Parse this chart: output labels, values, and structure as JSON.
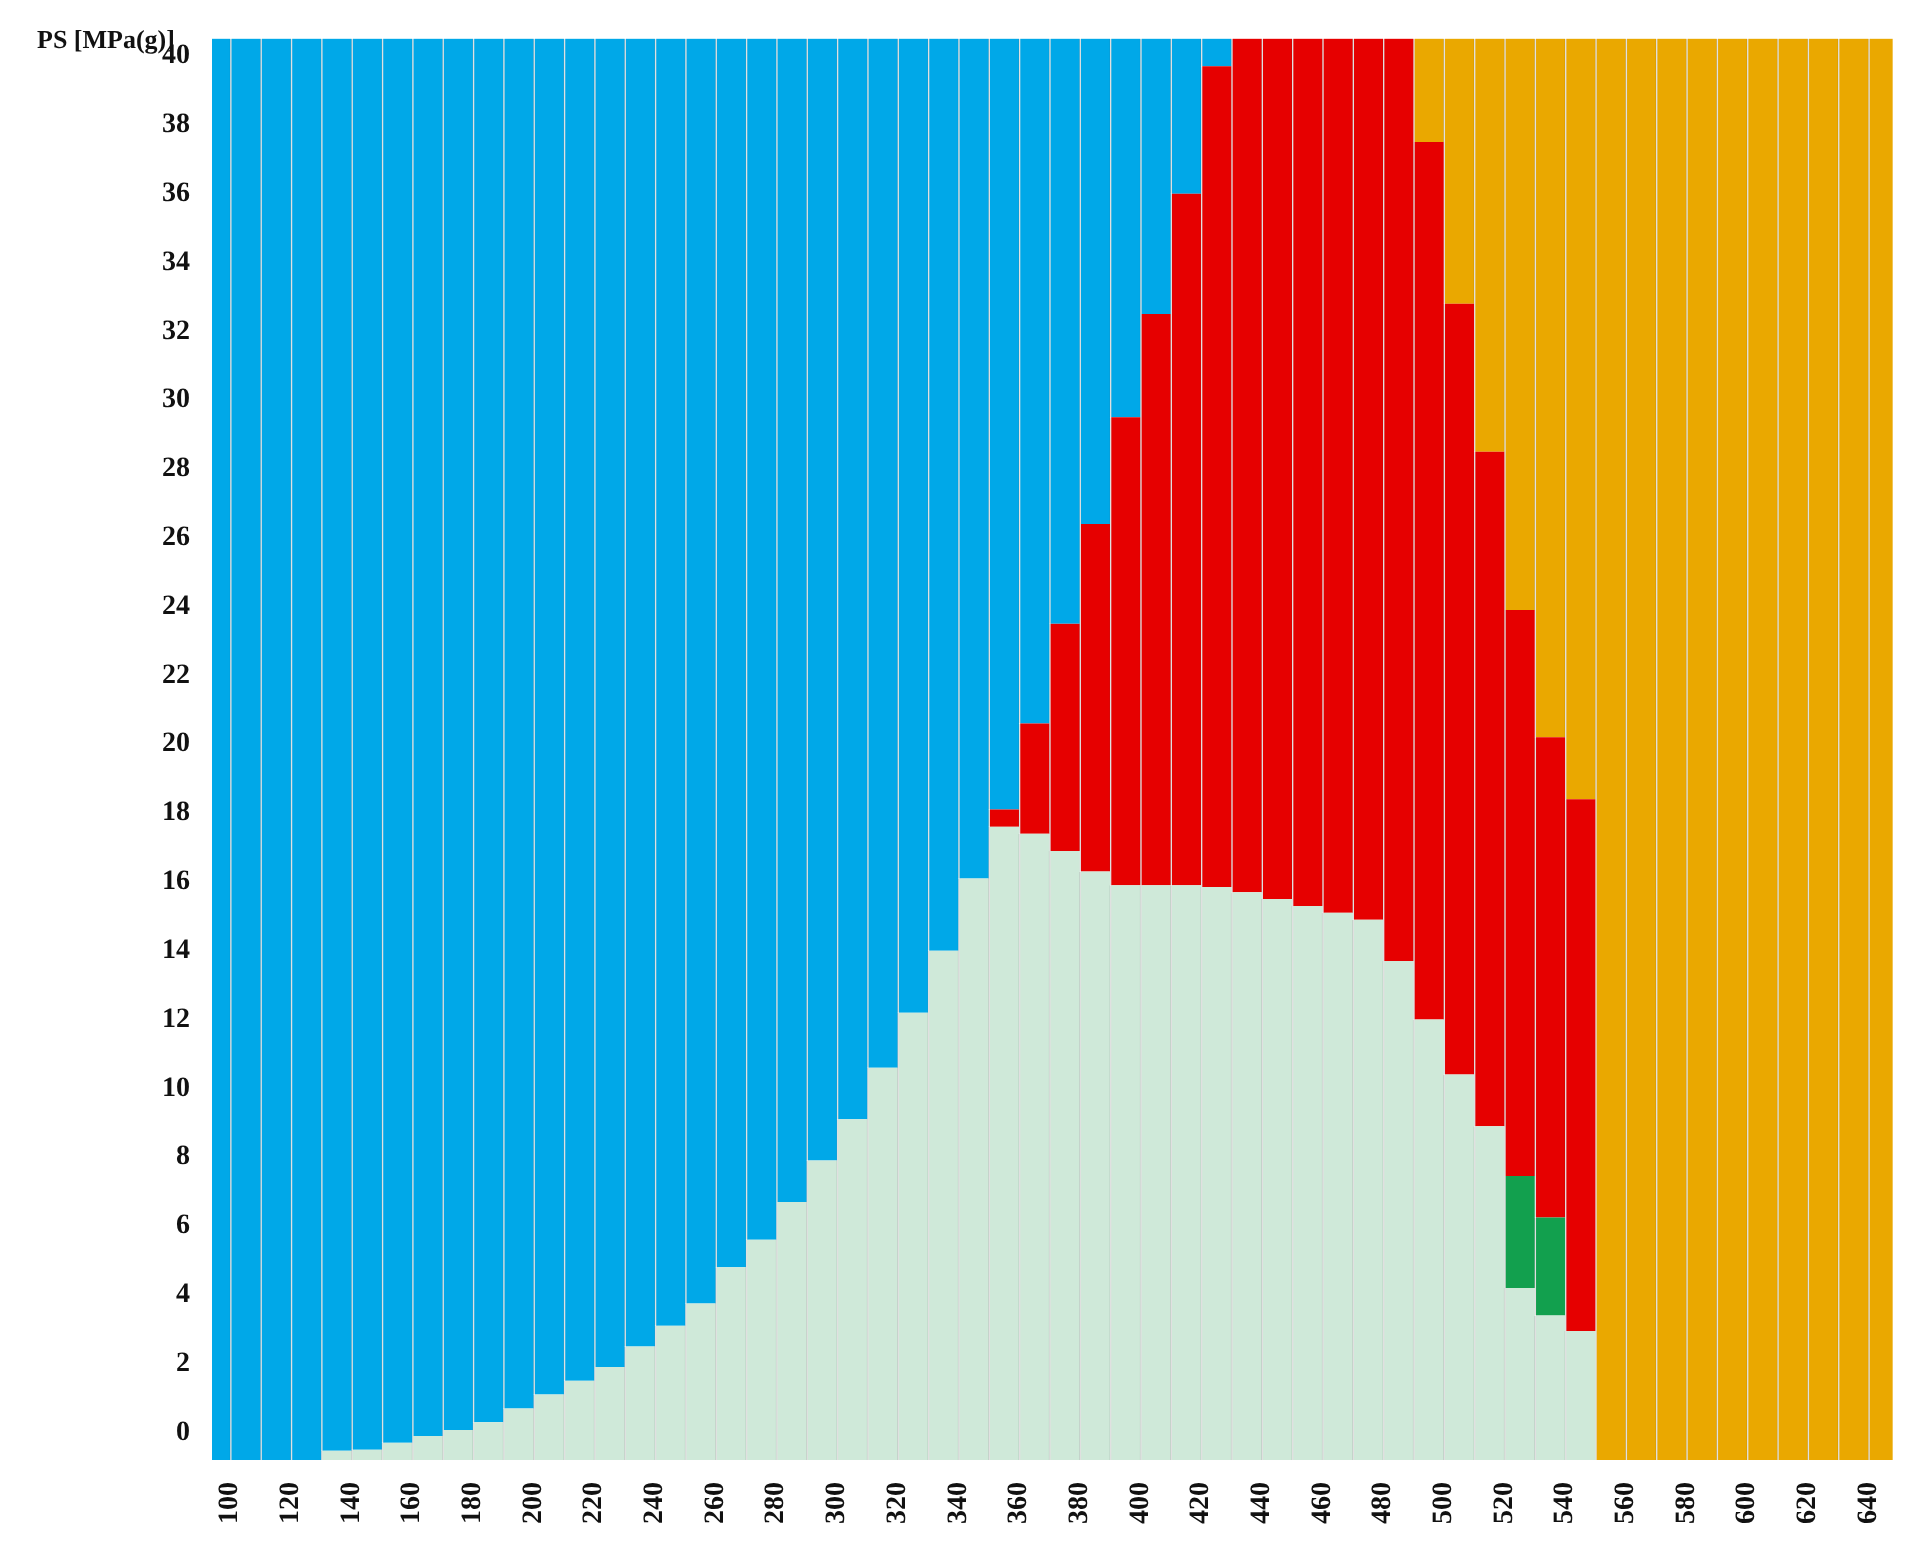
{
  "chart_data": {
    "type": "bar",
    "ylabel": "PS [MPa(g)]",
    "x": [
      95,
      105,
      115,
      125,
      135,
      145,
      155,
      165,
      175,
      185,
      195,
      205,
      215,
      225,
      235,
      245,
      255,
      265,
      275,
      285,
      295,
      305,
      315,
      325,
      335,
      345,
      355,
      365,
      375,
      385,
      395,
      405,
      415,
      425,
      435,
      445,
      455,
      465,
      475,
      485,
      495,
      505,
      515,
      525,
      535,
      545,
      555,
      565,
      575,
      585,
      595,
      605,
      615,
      625,
      635,
      645
    ],
    "series": [
      {
        "color": "#cfe9d9",
        "base": [
          null,
          null,
          null,
          null,
          -0.8,
          -0.8,
          -0.8,
          -0.8,
          -0.8,
          -0.8,
          -0.8,
          -0.8,
          -0.8,
          -0.8,
          -0.8,
          -0.8,
          -0.8,
          -0.8,
          -0.8,
          -0.8,
          -0.8,
          -0.8,
          -0.8,
          -0.8,
          -0.8,
          -0.8,
          -0.8,
          -0.8,
          -0.8,
          -0.8,
          -0.8,
          -0.8,
          -0.8,
          -0.8,
          -0.8,
          -0.8,
          -0.8,
          -0.8,
          -0.8,
          -0.8,
          -0.8,
          -0.8,
          -0.8,
          -0.8,
          -0.8,
          -0.8,
          null,
          null,
          null,
          null,
          null,
          null,
          null,
          null,
          null,
          null
        ],
        "values": [
          null,
          null,
          null,
          null,
          0.27,
          0.3,
          0.5,
          0.7,
          0.87,
          1.1,
          1.5,
          1.9,
          2.3,
          2.7,
          3.3,
          3.9,
          4.55,
          5.6,
          6.4,
          7.5,
          8.7,
          9.9,
          11.4,
          13.0,
          14.8,
          16.9,
          18.4,
          18.2,
          17.7,
          17.1,
          16.7,
          16.7,
          16.7,
          16.65,
          16.5,
          16.3,
          16.1,
          15.9,
          15.7,
          14.5,
          12.8,
          11.2,
          9.7,
          5.0,
          4.2,
          3.75,
          null,
          null,
          null,
          null,
          null,
          null,
          null,
          null,
          null,
          null
        ]
      },
      {
        "color": "#12a04e",
        "base": [
          null,
          null,
          null,
          null,
          null,
          null,
          null,
          null,
          null,
          null,
          null,
          null,
          null,
          null,
          null,
          null,
          null,
          null,
          null,
          null,
          null,
          null,
          null,
          null,
          null,
          null,
          null,
          null,
          null,
          null,
          null,
          null,
          null,
          null,
          null,
          null,
          null,
          null,
          null,
          null,
          null,
          null,
          null,
          4.2,
          3.4,
          null,
          null,
          null,
          null,
          null,
          null,
          null,
          null,
          null,
          null,
          null
        ],
        "values": [
          null,
          null,
          null,
          null,
          null,
          null,
          null,
          null,
          null,
          null,
          null,
          null,
          null,
          null,
          null,
          null,
          null,
          null,
          null,
          null,
          null,
          null,
          null,
          null,
          null,
          null,
          null,
          null,
          null,
          null,
          null,
          null,
          null,
          null,
          null,
          null,
          null,
          null,
          null,
          null,
          null,
          null,
          null,
          3.25,
          2.85,
          null,
          null,
          null,
          null,
          null,
          null,
          null,
          null,
          null,
          null,
          null
        ]
      },
      {
        "color": "#e60000",
        "base": [
          null,
          null,
          null,
          null,
          null,
          null,
          null,
          null,
          null,
          null,
          null,
          null,
          null,
          null,
          null,
          null,
          null,
          null,
          null,
          null,
          null,
          null,
          null,
          null,
          null,
          null,
          17.6,
          17.4,
          16.9,
          16.3,
          15.9,
          15.9,
          15.9,
          15.85,
          15.7,
          15.5,
          15.3,
          15.1,
          14.9,
          13.7,
          12.0,
          10.4,
          8.9,
          7.45,
          6.25,
          2.95,
          null,
          null,
          null,
          null,
          null,
          null,
          null,
          null,
          null,
          null
        ],
        "values": [
          null,
          null,
          null,
          null,
          null,
          null,
          null,
          null,
          null,
          null,
          null,
          null,
          null,
          null,
          null,
          null,
          null,
          null,
          null,
          null,
          null,
          null,
          null,
          null,
          null,
          null,
          0.5,
          3.2,
          6.6,
          10.1,
          13.6,
          16.6,
          20.1,
          23.85,
          24.8,
          25.0,
          25.2,
          25.4,
          25.6,
          26.8,
          25.5,
          22.4,
          19.6,
          16.45,
          13.95,
          15.45,
          null,
          null,
          null,
          null,
          null,
          null,
          null,
          null,
          null,
          null
        ]
      },
      {
        "color": "#00a8e8",
        "base": [
          -0.8,
          -0.8,
          -0.8,
          -0.8,
          -0.53,
          -0.5,
          -0.3,
          -0.1,
          0.07,
          0.3,
          0.7,
          1.1,
          1.5,
          1.9,
          2.5,
          3.1,
          3.75,
          4.8,
          5.6,
          6.7,
          7.9,
          9.1,
          10.6,
          12.2,
          14.0,
          16.1,
          18.1,
          20.6,
          23.5,
          26.4,
          29.5,
          32.5,
          36.0,
          39.7,
          null,
          null,
          null,
          null,
          null,
          null,
          null,
          null,
          null,
          null,
          null,
          null,
          null,
          null,
          null,
          null,
          null,
          null,
          null,
          null,
          null,
          null
        ],
        "values": [
          41.3,
          41.3,
          41.3,
          41.3,
          41.03,
          41.0,
          40.8,
          40.6,
          40.43,
          40.2,
          39.8,
          39.4,
          39.0,
          38.6,
          38.0,
          37.4,
          36.75,
          35.7,
          34.9,
          33.8,
          32.6,
          31.4,
          29.9,
          28.3,
          26.5,
          24.4,
          22.4,
          19.9,
          17.0,
          14.1,
          11.0,
          8.0,
          4.5,
          0.8,
          null,
          null,
          null,
          null,
          null,
          null,
          null,
          null,
          null,
          null,
          null,
          null,
          null,
          null,
          null,
          null,
          null,
          null,
          null,
          null,
          null,
          null
        ]
      },
      {
        "color": "#eaa800",
        "base": [
          null,
          null,
          null,
          null,
          null,
          null,
          null,
          null,
          null,
          null,
          null,
          null,
          null,
          null,
          null,
          null,
          null,
          null,
          null,
          null,
          null,
          null,
          null,
          null,
          null,
          null,
          null,
          null,
          null,
          null,
          null,
          null,
          null,
          null,
          null,
          null,
          null,
          null,
          null,
          null,
          37.5,
          32.8,
          28.5,
          23.9,
          20.2,
          18.4,
          -0.8,
          -0.8,
          -0.8,
          -0.8,
          -0.8,
          -0.8,
          -0.8,
          -0.8,
          -0.8,
          -0.8
        ],
        "values": [
          null,
          null,
          null,
          null,
          null,
          null,
          null,
          null,
          null,
          null,
          null,
          null,
          null,
          null,
          null,
          null,
          null,
          null,
          null,
          null,
          null,
          null,
          null,
          null,
          null,
          null,
          null,
          null,
          null,
          null,
          null,
          null,
          null,
          null,
          null,
          null,
          null,
          null,
          null,
          null,
          3.0,
          7.7,
          12.0,
          16.6,
          20.3,
          22.1,
          41.3,
          41.3,
          41.3,
          41.3,
          41.3,
          41.3,
          41.3,
          41.3,
          41.3,
          41.3
        ]
      }
    ],
    "xlim": [
      94,
      648
    ],
    "xticks": [
      100,
      120,
      140,
      160,
      180,
      200,
      220,
      240,
      260,
      280,
      300,
      320,
      340,
      360,
      380,
      400,
      420,
      440,
      460,
      480,
      500,
      520,
      540,
      560,
      580,
      600,
      620,
      640
    ],
    "ylim": [
      -0.8,
      40.5
    ],
    "yticks": [
      0,
      2,
      4,
      6,
      8,
      10,
      12,
      14,
      16,
      18,
      20,
      22,
      24,
      26,
      28,
      30,
      32,
      34,
      36,
      38,
      40
    ]
  }
}
